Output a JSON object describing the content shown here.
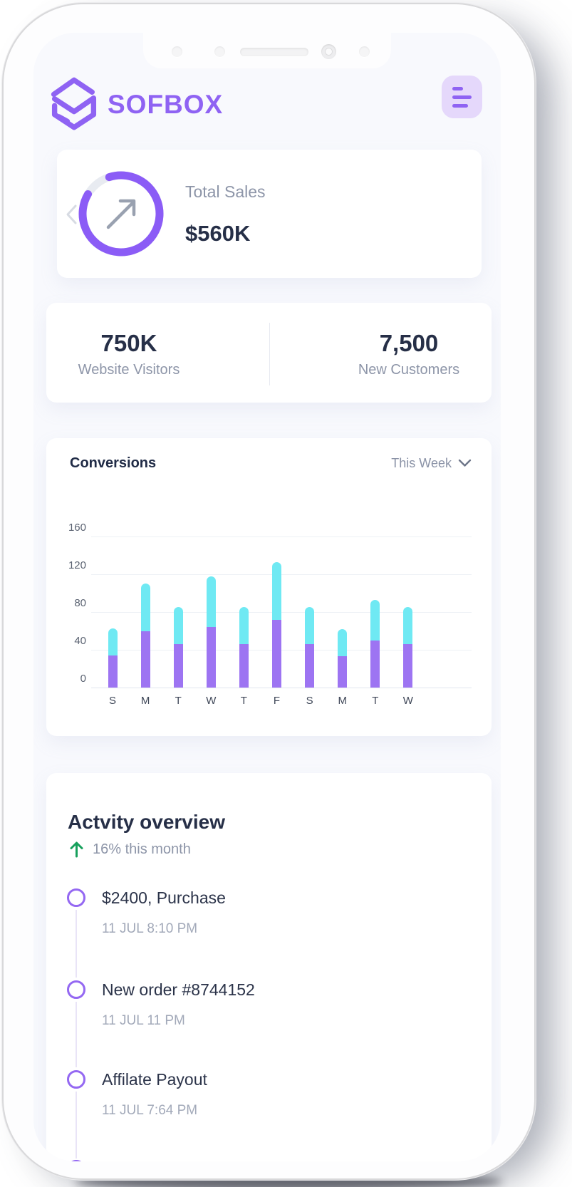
{
  "header": {
    "brand": "SOFBOX"
  },
  "sales_card": {
    "label": "Total Sales",
    "value": "$560K"
  },
  "stats_card": {
    "items": [
      {
        "value": "750K",
        "label": "Website Visitors"
      },
      {
        "value": "7,500",
        "label": "New Customers"
      }
    ]
  },
  "conversions": {
    "title": "Conversions",
    "filter": "This Week",
    "chart_data": {
      "type": "bar",
      "stacked": true,
      "title": "Conversions",
      "categories": [
        "S",
        "M",
        "T",
        "W",
        "T",
        "F",
        "S",
        "M",
        "T",
        "W"
      ],
      "series": [
        {
          "name": "primary",
          "color": "#9d74f2",
          "values": [
            34,
            60,
            46,
            64,
            46,
            72,
            46,
            33,
            50,
            46
          ]
        },
        {
          "name": "secondary",
          "color": "#6fe9f3",
          "values": [
            29,
            50,
            39,
            54,
            39,
            61,
            39,
            29,
            43,
            39
          ]
        }
      ],
      "totals": [
        63,
        110,
        85,
        118,
        85,
        133,
        85,
        62,
        93,
        85
      ],
      "yticks": [
        160,
        120,
        80,
        40,
        0
      ],
      "ylim": [
        0,
        160
      ],
      "grid": true,
      "legend": "none"
    }
  },
  "activity": {
    "title": "Actvity overview",
    "trend": "16% this month",
    "items": [
      {
        "title": "$2400, Purchase",
        "time": "11 JUL 8:10 PM"
      },
      {
        "title": "New order #8744152",
        "time": "11 JUL 11 PM"
      },
      {
        "title": "Affilate Payout",
        "time": "11 JUL 7:64 PM"
      }
    ]
  },
  "colors": {
    "accent": "#8b5cf6",
    "logo_purple": "#8f63f3",
    "bar_purple": "#9d74f2",
    "bar_cyan": "#6fe9f3",
    "text_dark": "#262f47",
    "text_muted": "#8d95a8",
    "green": "#17a05c",
    "ring_track": "#e8ebf1"
  }
}
